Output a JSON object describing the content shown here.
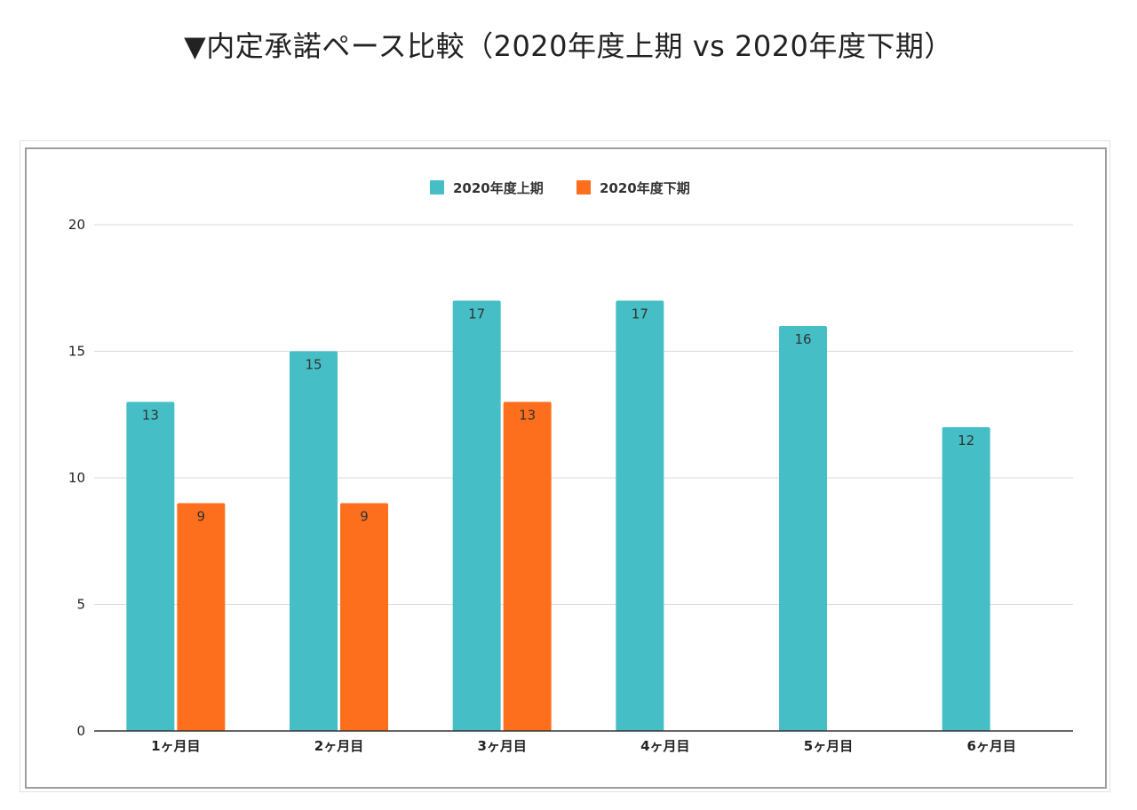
{
  "heading": "▼内定承諾ペース比較（2020年度上期 vs 2020年度下期）",
  "chart_data": {
    "type": "bar",
    "categories": [
      "1ヶ月目",
      "2ヶ月目",
      "3ヶ月目",
      "4ヶ月目",
      "5ヶ月目",
      "6ヶ月目"
    ],
    "series": [
      {
        "name": "2020年度上期",
        "color": "#45bec6",
        "values": [
          13,
          15,
          17,
          17,
          16,
          12
        ]
      },
      {
        "name": "2020年度下期",
        "color": "#fd6f1d",
        "values": [
          9,
          9,
          13,
          null,
          null,
          null
        ]
      }
    ],
    "ylim": [
      0,
      20
    ],
    "yticks": [
      0,
      5,
      10,
      15,
      20
    ],
    "grid": true,
    "legend": "top-center",
    "data_labels": true
  }
}
